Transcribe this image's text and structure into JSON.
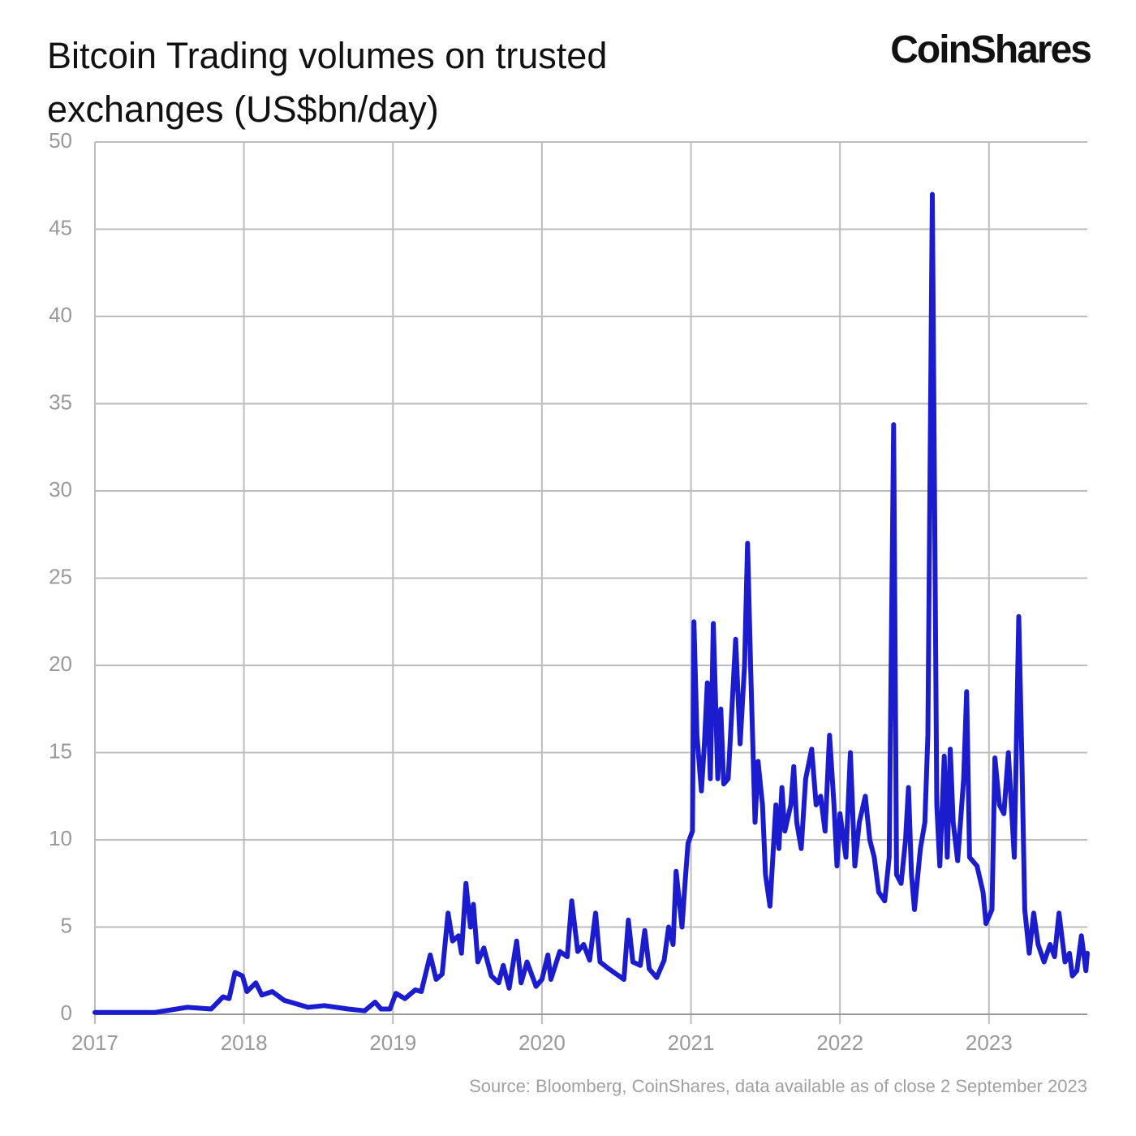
{
  "chart_data": {
    "type": "line",
    "title": "Bitcoin Trading volumes on trusted exchanges (US$bn/day)",
    "logo": "CoinShares",
    "source": "Source: Bloomberg, CoinShares, data available as of close 2 September 2023",
    "xlim": [
      2017,
      2023.66
    ],
    "xticks": [
      2017,
      2018,
      2019,
      2020,
      2021,
      2022,
      2023
    ],
    "ylim": [
      0,
      50
    ],
    "yticks": [
      0,
      5,
      10,
      15,
      20,
      25,
      30,
      35,
      40,
      45,
      50
    ],
    "grid": true,
    "x": [
      2017.0,
      2017.2,
      2017.4,
      2017.62,
      2017.78,
      2017.86,
      2017.9,
      2017.94,
      2017.99,
      2018.02,
      2018.08,
      2018.12,
      2018.19,
      2018.27,
      2018.43,
      2018.54,
      2018.7,
      2018.81,
      2018.88,
      2018.92,
      2018.98,
      2019.02,
      2019.08,
      2019.15,
      2019.19,
      2019.25,
      2019.29,
      2019.33,
      2019.37,
      2019.4,
      2019.44,
      2019.46,
      2019.49,
      2019.52,
      2019.54,
      2019.57,
      2019.61,
      2019.66,
      2019.71,
      2019.74,
      2019.78,
      2019.83,
      2019.86,
      2019.9,
      2019.96,
      2020.0,
      2020.04,
      2020.06,
      2020.12,
      2020.17,
      2020.2,
      2020.24,
      2020.28,
      2020.32,
      2020.36,
      2020.39,
      2020.45,
      2020.55,
      2020.58,
      2020.61,
      2020.66,
      2020.69,
      2020.72,
      2020.77,
      2020.82,
      2020.85,
      2020.88,
      2020.9,
      2020.94,
      2020.96,
      2020.98,
      2021.01,
      2021.02,
      2021.04,
      2021.07,
      2021.09,
      2021.11,
      2021.13,
      2021.15,
      2021.18,
      2021.2,
      2021.22,
      2021.25,
      2021.3,
      2021.33,
      2021.36,
      2021.38,
      2021.4,
      2021.43,
      2021.45,
      2021.48,
      2021.5,
      2021.53,
      2021.57,
      2021.59,
      2021.61,
      2021.63,
      2021.67,
      2021.69,
      2021.71,
      2021.74,
      2021.77,
      2021.81,
      2021.84,
      2021.87,
      2021.9,
      2021.93,
      2021.96,
      2021.98,
      2022.0,
      2022.04,
      2022.07,
      2022.1,
      2022.13,
      2022.17,
      2022.2,
      2022.23,
      2022.26,
      2022.3,
      2022.33,
      2022.36,
      2022.38,
      2022.41,
      2022.44,
      2022.46,
      2022.48,
      2022.5,
      2022.54,
      2022.57,
      2022.59,
      2022.62,
      2022.65,
      2022.67,
      2022.7,
      2022.72,
      2022.74,
      2022.76,
      2022.79,
      2022.83,
      2022.85,
      2022.87,
      2022.92,
      2022.96,
      2022.98,
      2023.02,
      2023.04,
      2023.07,
      2023.1,
      2023.13,
      2023.17,
      2023.2,
      2023.22,
      2023.24,
      2023.27,
      2023.3,
      2023.33,
      2023.37,
      2023.41,
      2023.44,
      2023.47,
      2023.51,
      2023.54,
      2023.56,
      2023.59,
      2023.62,
      2023.65,
      2023.66
    ],
    "series": [
      {
        "name": "Bitcoin trading volume",
        "color": "#1c1ccf",
        "values": [
          0.1,
          0.1,
          0.1,
          0.4,
          0.3,
          1.0,
          0.9,
          2.4,
          2.2,
          1.3,
          1.8,
          1.1,
          1.3,
          0.8,
          0.4,
          0.5,
          0.3,
          0.2,
          0.7,
          0.3,
          0.3,
          1.2,
          0.9,
          1.4,
          1.3,
          3.4,
          2.0,
          2.3,
          5.8,
          4.2,
          4.5,
          3.5,
          7.5,
          5.0,
          6.3,
          3.0,
          3.8,
          2.2,
          1.8,
          2.8,
          1.5,
          4.2,
          1.8,
          3.0,
          1.6,
          2.0,
          3.4,
          2.0,
          3.6,
          3.3,
          6.5,
          3.6,
          4.0,
          3.1,
          5.8,
          3.0,
          2.6,
          2.0,
          5.4,
          3.0,
          2.8,
          4.8,
          2.6,
          2.1,
          3.1,
          5.0,
          4.0,
          8.2,
          5.0,
          7.5,
          9.8,
          10.5,
          22.5,
          16.0,
          12.8,
          15.5,
          19.0,
          13.5,
          22.4,
          13.5,
          17.5,
          13.2,
          13.5,
          21.5,
          15.5,
          20.0,
          27.0,
          20.0,
          11.0,
          14.5,
          12.0,
          8.0,
          6.2,
          12.0,
          9.5,
          13.0,
          10.5,
          12.0,
          14.2,
          11.0,
          9.5,
          13.5,
          15.2,
          12.0,
          12.5,
          10.5,
          16.0,
          12.0,
          8.5,
          11.5,
          9.0,
          15.0,
          8.5,
          11.0,
          12.5,
          10.0,
          9.0,
          7.0,
          6.5,
          9.0,
          33.8,
          8.0,
          7.5,
          10.0,
          13.0,
          8.0,
          6.0,
          9.5,
          11.0,
          16.0,
          47.0,
          12.0,
          8.5,
          14.8,
          9.0,
          15.2,
          11.0,
          8.8,
          13.5,
          18.5,
          9.0,
          8.5,
          7.0,
          5.2,
          6.0,
          14.7,
          12.0,
          11.5,
          15.0,
          9.0,
          22.8,
          15.0,
          6.0,
          3.5,
          5.8,
          4.0,
          3.0,
          4.0,
          3.3,
          5.8,
          3.0,
          3.5,
          2.2,
          2.5,
          4.5,
          2.5,
          3.5
        ]
      }
    ]
  }
}
